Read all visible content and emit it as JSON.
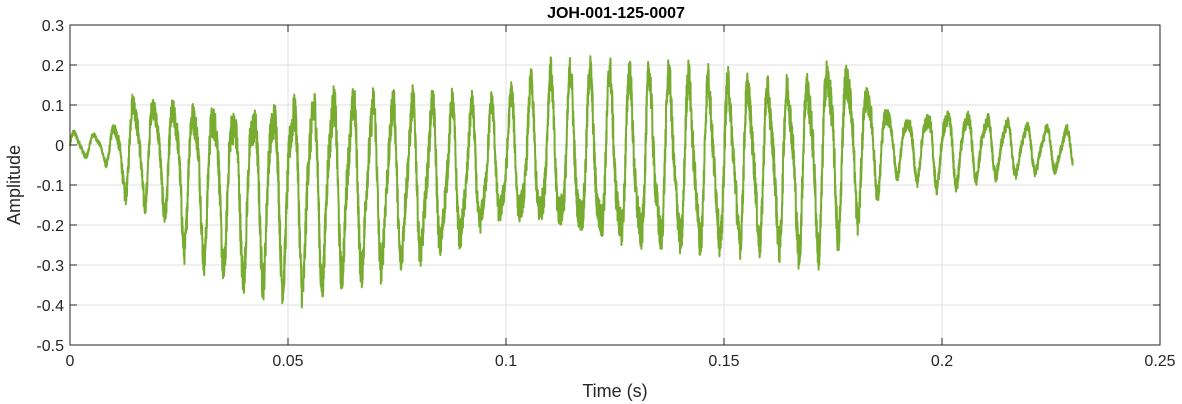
{
  "chart_data": {
    "type": "line",
    "title": "JOH-001-125-0007",
    "xlabel": "Time (s)",
    "ylabel": "Amplitude",
    "xlim": [
      0,
      0.25
    ],
    "ylim": [
      -0.5,
      0.3
    ],
    "grid": true,
    "x_ticks": [
      0,
      0.05,
      0.1,
      0.15,
      0.2,
      0.25
    ],
    "x_tick_labels": [
      "0",
      "0.05",
      "0.1",
      "0.15",
      "0.2",
      "0.25"
    ],
    "y_ticks": [
      0.3,
      0.2,
      0.1,
      0,
      -0.1,
      -0.2,
      -0.3,
      -0.4,
      -0.5
    ],
    "y_tick_labels": [
      "0.3",
      "0.2",
      "0.1",
      "0",
      "-0.1",
      "-0.2",
      "-0.3",
      "-0.4",
      "-0.5"
    ],
    "series": [
      {
        "color": "#77ac30",
        "duration": 0.23,
        "envelope": {
          "t": [
            0,
            0.007,
            0.01,
            0.014,
            0.02,
            0.026,
            0.033,
            0.04,
            0.05,
            0.055,
            0.062,
            0.07,
            0.08,
            0.09,
            0.095,
            0.1,
            0.11,
            0.12,
            0.13,
            0.14,
            0.15,
            0.16,
            0.17,
            0.176,
            0.18,
            0.185,
            0.19,
            0.2,
            0.21,
            0.22,
            0.23
          ],
          "max": [
            0.04,
            0.03,
            0.06,
            0.15,
            0.14,
            0.15,
            0.15,
            0.14,
            0.17,
            0.18,
            0.18,
            0.16,
            0.15,
            0.13,
            0.12,
            0.14,
            0.2,
            0.21,
            0.21,
            0.21,
            0.2,
            0.19,
            0.22,
            0.28,
            0.22,
            0.15,
            0.08,
            0.11,
            0.09,
            0.06,
            0.05
          ],
          "min": [
            -0.04,
            -0.03,
            -0.09,
            -0.17,
            -0.16,
            -0.28,
            -0.32,
            -0.36,
            -0.38,
            -0.4,
            -0.36,
            -0.35,
            -0.32,
            -0.28,
            -0.24,
            -0.22,
            -0.25,
            -0.28,
            -0.3,
            -0.3,
            -0.29,
            -0.28,
            -0.31,
            -0.26,
            -0.22,
            -0.14,
            -0.08,
            -0.12,
            -0.09,
            -0.08,
            -0.07
          ]
        },
        "dominant_frequency_hz": 220
      }
    ]
  }
}
